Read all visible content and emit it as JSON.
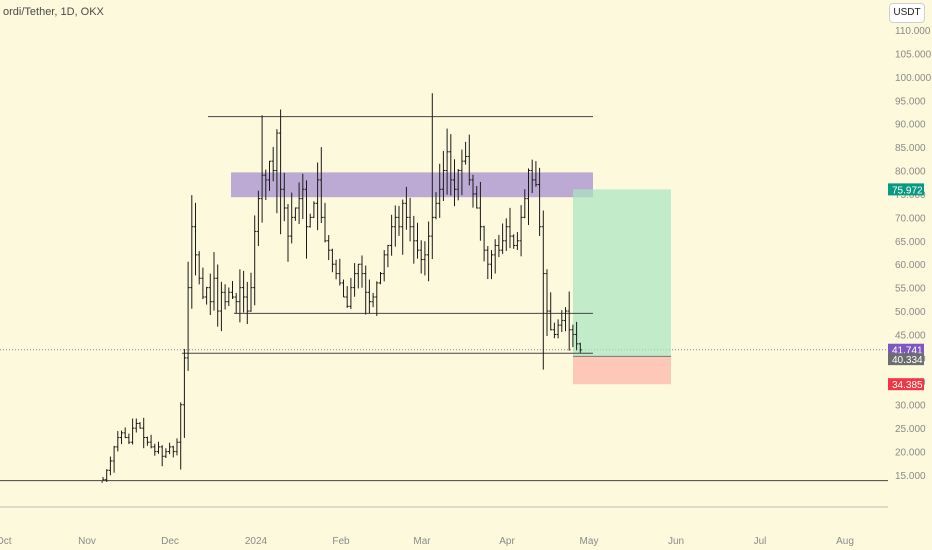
{
  "title": "ordi/Tether, 1D, OKX",
  "currency_button": "USDT",
  "chart_data": {
    "type": "ohlc",
    "title": "ordi/Tether, 1D, OKX",
    "y_range": [
      10,
      112
    ],
    "y_ticks": [
      "110.000",
      "105.000",
      "100.000",
      "95.000",
      "90.000",
      "85.000",
      "80.000",
      "75.000",
      "70.000",
      "65.000",
      "60.000",
      "55.000",
      "50.000",
      "45.000",
      "40.000",
      "35.000",
      "30.000",
      "25.000",
      "20.000",
      "15.000"
    ],
    "x_ticks": [
      "Oct",
      "Nov",
      "Dec",
      "2024",
      "Feb",
      "Mar",
      "Apr",
      "May",
      "Jun",
      "Jul",
      "Aug"
    ],
    "price_labels": {
      "target": "75.972",
      "last": "41.741",
      "entry": "40.334",
      "stop": "34.385"
    },
    "colors": {
      "background": "#fcf9dc",
      "bar": "#1a1a1a",
      "zone": "#9a7fd0",
      "profit": "#a8e6c0",
      "loss": "#ffb4a8",
      "target_tag": "#089981",
      "last_tag": "#7e57c2",
      "entry_tag": "#6d6d6d",
      "stop_tag": "#f23645"
    },
    "levels": [
      {
        "name": "resistance-high",
        "price": 91.5
      },
      {
        "name": "mid-support",
        "price": 49.5
      },
      {
        "name": "base-support",
        "price": 41.0
      },
      {
        "name": "low",
        "price": 13.8
      }
    ],
    "resistance_zone": {
      "low": 74.3,
      "high": 79.6
    },
    "position": {
      "entry": 40.334,
      "target": 75.972,
      "stop": 34.385
    },
    "closes": [
      14,
      16,
      18,
      21,
      23,
      24,
      23,
      22,
      25,
      26,
      25,
      23,
      22,
      21,
      20,
      21,
      19,
      20,
      21,
      20,
      22,
      30,
      40,
      55,
      68,
      62,
      57,
      53,
      55,
      52,
      57,
      50,
      54,
      52,
      54,
      53,
      52,
      55,
      53,
      50,
      55,
      67,
      74,
      79,
      78,
      82,
      80,
      88,
      76,
      72,
      66,
      70,
      72,
      74,
      76,
      68,
      70,
      73,
      78,
      70,
      65,
      63,
      60,
      58,
      56,
      53,
      51,
      55,
      58,
      60,
      58,
      54,
      52,
      53,
      56,
      58,
      62,
      64,
      68,
      70,
      68,
      73,
      70,
      68,
      65,
      63,
      61,
      62,
      66,
      70,
      73,
      76,
      80,
      84,
      78,
      76,
      80,
      82,
      83,
      78,
      75,
      72,
      68,
      63,
      60,
      62,
      64,
      63,
      65,
      68,
      66,
      64,
      65,
      70,
      74,
      80,
      78,
      77,
      68,
      58,
      50,
      46,
      45,
      47,
      48,
      50,
      46,
      45,
      43,
      41.7
    ]
  }
}
